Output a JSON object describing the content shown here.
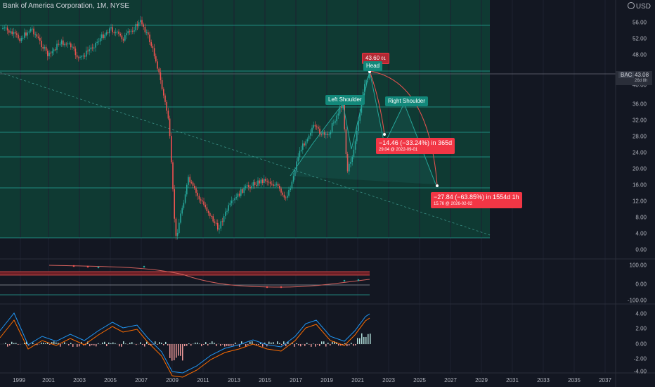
{
  "header": {
    "symbol_info": "Bank of America Corporation, 1M, NYSE",
    "currency": "USD"
  },
  "main_axis": {
    "ticks": [
      "56.00",
      "52.00",
      "48.00",
      "44.00",
      "40.00",
      "36.00",
      "32.00",
      "28.00",
      "24.00",
      "20.00",
      "16.00",
      "12.00",
      "8.00",
      "4.00",
      "0.00"
    ]
  },
  "osc1_axis": {
    "ticks": [
      "100.00",
      "0.00",
      "-100.00"
    ]
  },
  "macd_axis": {
    "ticks": [
      "4.00",
      "2.00",
      "0.00",
      "-2.00",
      "-4.00"
    ]
  },
  "x_axis": {
    "ticks": [
      "1999",
      "2001",
      "2003",
      "2005",
      "2007",
      "2009",
      "2011",
      "2013",
      "2015",
      "2017",
      "2019",
      "2021",
      "2023",
      "2025",
      "2027",
      "2029",
      "2031",
      "2033",
      "2035",
      "2037"
    ]
  },
  "price_tag": {
    "ticker": "BAC",
    "price": "43.08",
    "countdown": "26d 8h"
  },
  "labels": {
    "head_price": "43.60",
    "head_price_sub": "01",
    "head": "Head",
    "left_shoulder": "Left Shoulder",
    "right_shoulder": "Right Shoulder",
    "target1_main": "−14.46 (−33.24%) in 365d",
    "target1_sub": "29.04 @ 2022-09-01",
    "target2_main": "−27.84 (−63.85%) in 1554d 1h",
    "target2_sub": "15.76 @ 2026-02-02"
  },
  "colors": {
    "background": "#131722",
    "teal": "#26a69a",
    "red": "#ef5350",
    "zone": "#0f3a33"
  }
}
